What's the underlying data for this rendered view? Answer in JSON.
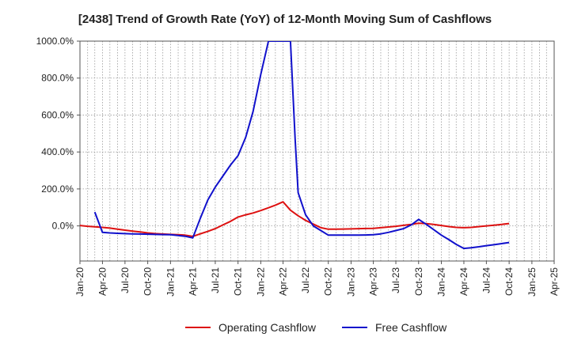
{
  "chart_data": {
    "type": "line",
    "title": "[2438]  Trend of Growth Rate (YoY) of 12-Month Moving Sum of Cashflows",
    "xlabel": "",
    "ylabel": "",
    "x_ticks": [
      "Jan-20",
      "Apr-20",
      "Jul-20",
      "Oct-20",
      "Jan-21",
      "Apr-21",
      "Jul-21",
      "Oct-21",
      "Jan-22",
      "Apr-22",
      "Jul-22",
      "Oct-22",
      "Jan-23",
      "Apr-23",
      "Jul-23",
      "Oct-23",
      "Jan-24",
      "Apr-24",
      "Jul-24",
      "Oct-24",
      "Jan-25",
      "Apr-25"
    ],
    "y_ticks": [
      {
        "value": 0,
        "label": "0.0%"
      },
      {
        "value": 200,
        "label": "200.0%"
      },
      {
        "value": 400,
        "label": "400.0%"
      },
      {
        "value": 600,
        "label": "600.0%"
      },
      {
        "value": 800,
        "label": "800.0%"
      },
      {
        "value": 1000,
        "label": "1000.0%"
      }
    ],
    "ylim": [
      -190,
      1000
    ],
    "grid": true,
    "legend_position": "bottom",
    "series": [
      {
        "name": "Operating Cashflow",
        "color": "#dd1111",
        "points": [
          [
            "2020-01",
            2
          ],
          [
            "2020-02",
            -2
          ],
          [
            "2020-03",
            -5
          ],
          [
            "2020-04",
            -8
          ],
          [
            "2020-05",
            -12
          ],
          [
            "2020-06",
            -18
          ],
          [
            "2020-07",
            -23
          ],
          [
            "2020-08",
            -28
          ],
          [
            "2020-09",
            -33
          ],
          [
            "2020-10",
            -38
          ],
          [
            "2020-11",
            -42
          ],
          [
            "2020-12",
            -44
          ],
          [
            "2021-01",
            -46
          ],
          [
            "2021-02",
            -48
          ],
          [
            "2021-03",
            -50
          ],
          [
            "2021-04",
            -57
          ],
          [
            "2021-05",
            -43
          ],
          [
            "2021-06",
            -30
          ],
          [
            "2021-07",
            -15
          ],
          [
            "2021-08",
            5
          ],
          [
            "2021-09",
            25
          ],
          [
            "2021-10",
            48
          ],
          [
            "2021-11",
            60
          ],
          [
            "2021-12",
            70
          ],
          [
            "2022-01",
            83
          ],
          [
            "2022-02",
            98
          ],
          [
            "2022-03",
            112
          ],
          [
            "2022-04",
            130
          ],
          [
            "2022-05",
            85
          ],
          [
            "2022-06",
            55
          ],
          [
            "2022-07",
            30
          ],
          [
            "2022-08",
            10
          ],
          [
            "2022-09",
            -10
          ],
          [
            "2022-10",
            -18
          ],
          [
            "2022-11",
            -18
          ],
          [
            "2022-12",
            -17
          ],
          [
            "2023-01",
            -16
          ],
          [
            "2023-02",
            -15
          ],
          [
            "2023-03",
            -14
          ],
          [
            "2023-04",
            -13
          ],
          [
            "2023-05",
            -10
          ],
          [
            "2023-06",
            -6
          ],
          [
            "2023-07",
            -2
          ],
          [
            "2023-08",
            3
          ],
          [
            "2023-09",
            8
          ],
          [
            "2023-10",
            14
          ],
          [
            "2023-11",
            12
          ],
          [
            "2023-12",
            8
          ],
          [
            "2024-01",
            2
          ],
          [
            "2024-02",
            -4
          ],
          [
            "2024-03",
            -8
          ],
          [
            "2024-04",
            -10
          ],
          [
            "2024-05",
            -8
          ],
          [
            "2024-06",
            -4
          ],
          [
            "2024-07",
            0
          ],
          [
            "2024-08",
            4
          ],
          [
            "2024-09",
            8
          ],
          [
            "2024-10",
            13
          ]
        ]
      },
      {
        "name": "Free Cashflow",
        "color": "#1111cc",
        "points": [
          [
            "2020-03",
            75
          ],
          [
            "2020-04",
            -35
          ],
          [
            "2020-05",
            -38
          ],
          [
            "2020-06",
            -40
          ],
          [
            "2020-07",
            -42
          ],
          [
            "2020-08",
            -43
          ],
          [
            "2020-09",
            -44
          ],
          [
            "2020-10",
            -45
          ],
          [
            "2020-11",
            -46
          ],
          [
            "2020-12",
            -47
          ],
          [
            "2021-01",
            -48
          ],
          [
            "2021-02",
            -52
          ],
          [
            "2021-03",
            -56
          ],
          [
            "2021-04",
            -65
          ],
          [
            "2021-05",
            40
          ],
          [
            "2021-06",
            140
          ],
          [
            "2021-07",
            210
          ],
          [
            "2021-08",
            270
          ],
          [
            "2021-09",
            330
          ],
          [
            "2021-10",
            380
          ],
          [
            "2021-11",
            480
          ],
          [
            "2021-12",
            620
          ],
          [
            "2022-01",
            820
          ],
          [
            "2022-02",
            1000
          ],
          [
            "2022-05",
            1000
          ],
          [
            "2022-05-20",
            470
          ],
          [
            "2022-06",
            180
          ],
          [
            "2022-07",
            60
          ],
          [
            "2022-08",
            0
          ],
          [
            "2022-09",
            -25
          ],
          [
            "2022-10",
            -50
          ],
          [
            "2022-11",
            -50
          ],
          [
            "2022-12",
            -50
          ],
          [
            "2023-01",
            -50
          ],
          [
            "2023-02",
            -50
          ],
          [
            "2023-03",
            -49
          ],
          [
            "2023-04",
            -48
          ],
          [
            "2023-05",
            -43
          ],
          [
            "2023-06",
            -35
          ],
          [
            "2023-07",
            -25
          ],
          [
            "2023-08",
            -15
          ],
          [
            "2023-09",
            5
          ],
          [
            "2023-10",
            35
          ],
          [
            "2023-11",
            8
          ],
          [
            "2023-12",
            -20
          ],
          [
            "2024-01",
            -50
          ],
          [
            "2024-02",
            -75
          ],
          [
            "2024-03",
            -100
          ],
          [
            "2024-04",
            -122
          ],
          [
            "2024-05",
            -118
          ],
          [
            "2024-06",
            -113
          ],
          [
            "2024-07",
            -107
          ],
          [
            "2024-08",
            -102
          ],
          [
            "2024-09",
            -96
          ],
          [
            "2024-10",
            -90
          ]
        ]
      }
    ]
  }
}
